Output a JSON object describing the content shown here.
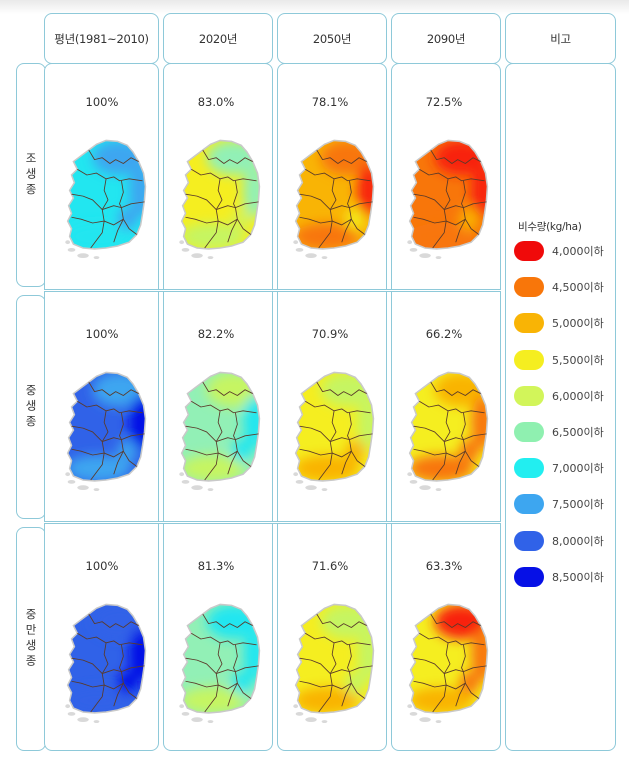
{
  "columns": [
    "평년(1981~2010)",
    "2020년",
    "2050년",
    "2090년",
    "비고"
  ],
  "rows": [
    {
      "label": "조생종",
      "values": [
        "100%",
        "83.0%",
        "78.1%",
        "72.5%"
      ]
    },
    {
      "label": "중생종",
      "values": [
        "100%",
        "82.2%",
        "70.9%",
        "66.2%"
      ]
    },
    {
      "label": "중만생종",
      "values": [
        "100%",
        "81.3%",
        "71.6%",
        "63.3%"
      ]
    }
  ],
  "map_colors": [
    [
      {
        "main": "#22e6f0",
        "north": "#3da6f0",
        "east": "#3da6f0",
        "south": "#22e6f0",
        "accent": "#3da6f0"
      },
      {
        "main": "#f5ee20",
        "north": "#92f0b6",
        "east": "#92f0b6",
        "south": "#c6f562",
        "accent": "#d6f24f"
      },
      {
        "main": "#f9b405",
        "north": "#f8760a",
        "east": "#f8220a",
        "south": "#f8760a",
        "accent": "#f4ea18"
      },
      {
        "main": "#f8760a",
        "north": "#f8220a",
        "east": "#f8220a",
        "south": "#f8760a",
        "accent": "#f9b405"
      }
    ],
    [
      {
        "main": "#3062e8",
        "north": "#3da6f0",
        "east": "#0610e6",
        "south": "#3da6f0",
        "accent": "#3da6f0"
      },
      {
        "main": "#92f0b6",
        "north": "#c6f562",
        "east": "#22e6f0",
        "south": "#c6f562",
        "accent": "#22e6f0"
      },
      {
        "main": "#f5ee20",
        "north": "#c6f562",
        "east": "#c6f562",
        "south": "#f9b405",
        "accent": "#f9b405"
      },
      {
        "main": "#f5ee20",
        "north": "#f9b405",
        "east": "#f8760a",
        "south": "#f8760a",
        "accent": "#f8760a"
      }
    ],
    [
      {
        "main": "#3062e8",
        "north": "#3062e8",
        "east": "#0610e6",
        "south": "#3062e8",
        "accent": "#0610e6"
      },
      {
        "main": "#92f0b6",
        "north": "#22e6f0",
        "east": "#22e6f0",
        "south": "#c6f562",
        "accent": "#22e6f0"
      },
      {
        "main": "#f5ee20",
        "north": "#c6f562",
        "east": "#c6f562",
        "south": "#f9b405",
        "accent": "#c6f562"
      },
      {
        "main": "#f5ee20",
        "north": "#f8220a",
        "east": "#f8760a",
        "south": "#f9b405",
        "accent": "#f8760a"
      }
    ]
  ],
  "legend": {
    "title": "비수량(kg/ha)",
    "items": [
      {
        "label": "4,000이하",
        "color": "#f00a0a"
      },
      {
        "label": "4,500이하",
        "color": "#f8760a"
      },
      {
        "label": "5,000이하",
        "color": "#f9b405"
      },
      {
        "label": "5,500이하",
        "color": "#f5ee20"
      },
      {
        "label": "6,000이하",
        "color": "#d2f55a"
      },
      {
        "label": "6,500이하",
        "color": "#8ff0b0"
      },
      {
        "label": "7,000이하",
        "color": "#22eef0"
      },
      {
        "label": "7,500이하",
        "color": "#3da6f0"
      },
      {
        "label": "8,000이하",
        "color": "#3062e8"
      },
      {
        "label": "8,500이하",
        "color": "#0610e6"
      }
    ]
  }
}
